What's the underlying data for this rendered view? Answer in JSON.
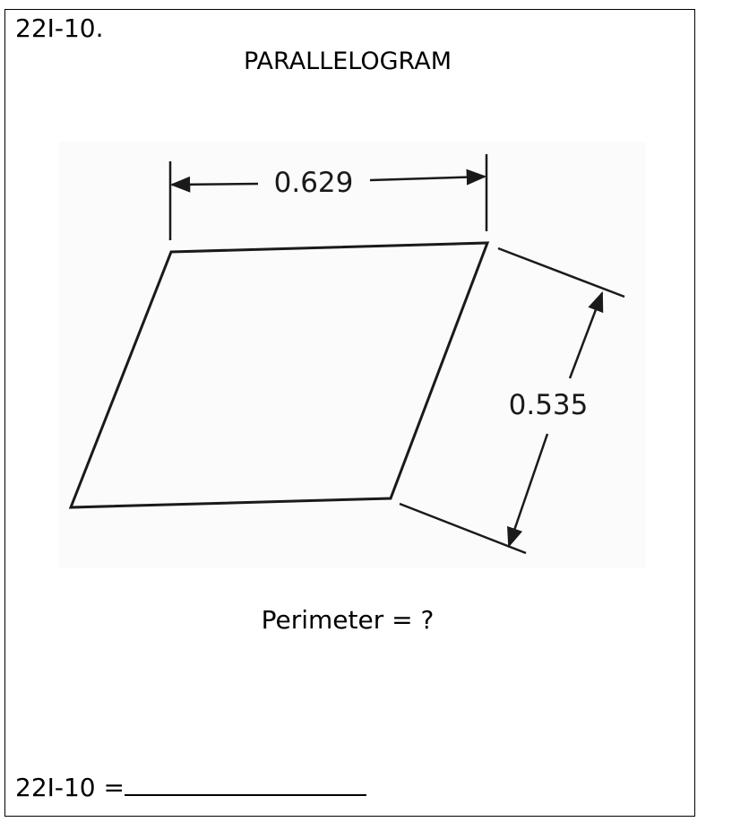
{
  "problem_id": "22I-10.",
  "title": "PARALLELOGRAM",
  "dimensions": {
    "top_width": "0.629",
    "slant_height": "0.535"
  },
  "question": "Perimeter = ?",
  "answer_label": "22I-10 =",
  "colors": {
    "line": "#1a1a1a",
    "background": "#ffffff"
  }
}
